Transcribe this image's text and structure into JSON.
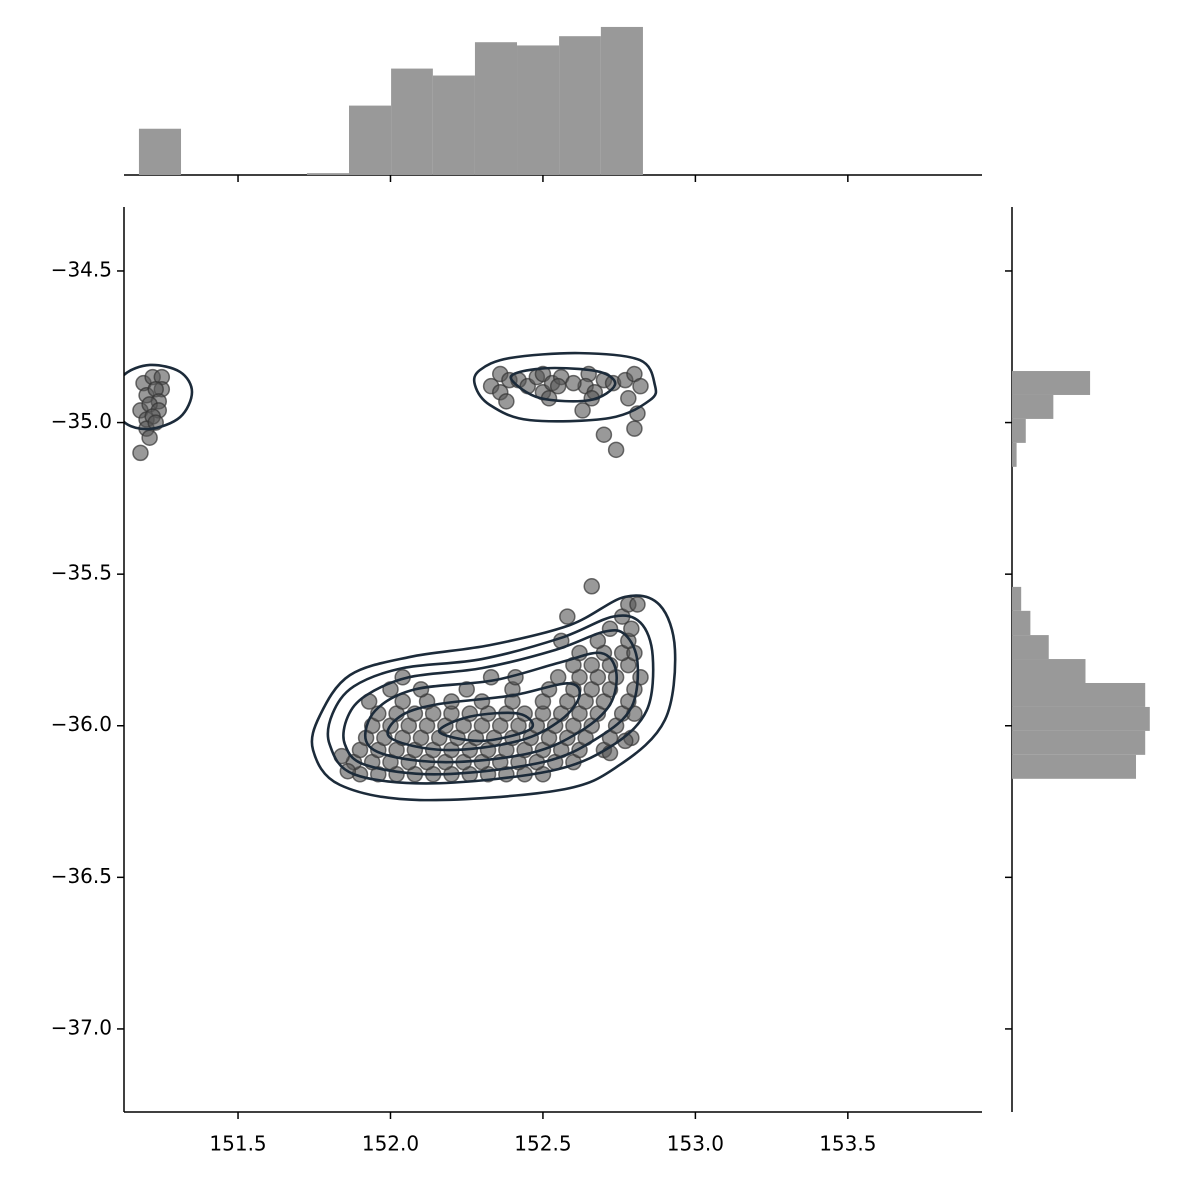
{
  "chart_data": {
    "type": "scatter",
    "xlim": [
      151.126,
      153.94
    ],
    "ylim": [
      -37.274,
      -34.289
    ],
    "xticks": [
      {
        "value": 151.5,
        "label": "151.5"
      },
      {
        "value": 152,
        "label": "152.0"
      },
      {
        "value": 152.5,
        "label": "152.5"
      },
      {
        "value": 153,
        "label": "153.0"
      },
      {
        "value": 153.5,
        "label": "153.5"
      }
    ],
    "yticks": [
      {
        "value": -34.5,
        "label": "−34.5"
      },
      {
        "value": -35,
        "label": "−35.0"
      },
      {
        "value": -35.5,
        "label": "−35.5"
      },
      {
        "value": -36,
        "label": "−36.0"
      },
      {
        "value": -36.5,
        "label": "−36.5"
      },
      {
        "value": -37,
        "label": "−37.0"
      }
    ],
    "point_color": "#555555",
    "contour_color": "#1c2b3a",
    "hist_color": "#999999",
    "points": [
      [
        151.19,
        -34.87
      ],
      [
        151.22,
        -34.85
      ],
      [
        151.25,
        -34.85
      ],
      [
        151.25,
        -34.89
      ],
      [
        151.2,
        -34.91
      ],
      [
        151.23,
        -34.89
      ],
      [
        151.24,
        -34.93
      ],
      [
        151.18,
        -34.96
      ],
      [
        151.21,
        -34.94
      ],
      [
        151.24,
        -34.96
      ],
      [
        151.2,
        -34.99
      ],
      [
        151.22,
        -34.98
      ],
      [
        151.2,
        -35.02
      ],
      [
        151.21,
        -35.05
      ],
      [
        151.18,
        -35.1
      ],
      [
        151.23,
        -35.0
      ],
      [
        152.33,
        -34.88
      ],
      [
        152.36,
        -34.84
      ],
      [
        152.36,
        -34.9
      ],
      [
        152.39,
        -34.86
      ],
      [
        152.38,
        -34.93
      ],
      [
        152.42,
        -34.86
      ],
      [
        152.45,
        -34.88
      ],
      [
        152.48,
        -34.85
      ],
      [
        152.5,
        -34.84
      ],
      [
        152.5,
        -34.9
      ],
      [
        152.52,
        -34.92
      ],
      [
        152.53,
        -34.87
      ],
      [
        152.56,
        -34.85
      ],
      [
        152.55,
        -34.88
      ],
      [
        152.65,
        -34.84
      ],
      [
        152.64,
        -34.88
      ],
      [
        152.67,
        -34.9
      ],
      [
        152.7,
        -34.86
      ],
      [
        152.73,
        -34.87
      ],
      [
        152.77,
        -34.86
      ],
      [
        152.8,
        -34.84
      ],
      [
        152.82,
        -34.88
      ],
      [
        152.78,
        -34.92
      ],
      [
        152.81,
        -34.97
      ],
      [
        152.8,
        -35.02
      ],
      [
        152.7,
        -35.04
      ],
      [
        152.74,
        -35.09
      ],
      [
        152.63,
        -34.96
      ],
      [
        152.66,
        -34.92
      ],
      [
        152.6,
        -34.87
      ],
      [
        151.9,
        -36.16
      ],
      [
        151.96,
        -36.16
      ],
      [
        152.02,
        -36.16
      ],
      [
        152.08,
        -36.16
      ],
      [
        152.14,
        -36.16
      ],
      [
        152.2,
        -36.16
      ],
      [
        152.26,
        -36.16
      ],
      [
        152.32,
        -36.16
      ],
      [
        152.38,
        -36.16
      ],
      [
        152.44,
        -36.16
      ],
      [
        152.5,
        -36.16
      ],
      [
        151.88,
        -36.12
      ],
      [
        151.94,
        -36.12
      ],
      [
        152.0,
        -36.12
      ],
      [
        152.06,
        -36.12
      ],
      [
        152.12,
        -36.12
      ],
      [
        152.18,
        -36.12
      ],
      [
        152.24,
        -36.12
      ],
      [
        152.3,
        -36.12
      ],
      [
        152.36,
        -36.12
      ],
      [
        152.42,
        -36.12
      ],
      [
        152.48,
        -36.12
      ],
      [
        152.54,
        -36.12
      ],
      [
        152.6,
        -36.12
      ],
      [
        151.9,
        -36.08
      ],
      [
        151.96,
        -36.08
      ],
      [
        152.02,
        -36.08
      ],
      [
        152.08,
        -36.08
      ],
      [
        152.14,
        -36.08
      ],
      [
        152.2,
        -36.08
      ],
      [
        152.26,
        -36.08
      ],
      [
        152.32,
        -36.08
      ],
      [
        152.38,
        -36.08
      ],
      [
        152.44,
        -36.08
      ],
      [
        152.5,
        -36.08
      ],
      [
        152.56,
        -36.08
      ],
      [
        152.62,
        -36.08
      ],
      [
        152.7,
        -36.08
      ],
      [
        151.92,
        -36.04
      ],
      [
        151.98,
        -36.04
      ],
      [
        152.04,
        -36.04
      ],
      [
        152.1,
        -36.04
      ],
      [
        152.16,
        -36.04
      ],
      [
        152.22,
        -36.04
      ],
      [
        152.28,
        -36.04
      ],
      [
        152.34,
        -36.04
      ],
      [
        152.4,
        -36.04
      ],
      [
        152.46,
        -36.04
      ],
      [
        152.52,
        -36.04
      ],
      [
        152.58,
        -36.04
      ],
      [
        152.64,
        -36.04
      ],
      [
        152.72,
        -36.04
      ],
      [
        152.79,
        -36.04
      ],
      [
        151.94,
        -36.0
      ],
      [
        152.0,
        -36.0
      ],
      [
        152.06,
        -36.0
      ],
      [
        152.12,
        -36.0
      ],
      [
        152.18,
        -36.0
      ],
      [
        152.24,
        -36.0
      ],
      [
        152.3,
        -36.0
      ],
      [
        152.36,
        -36.0
      ],
      [
        152.42,
        -36.0
      ],
      [
        152.48,
        -36.0
      ],
      [
        152.54,
        -36.0
      ],
      [
        152.6,
        -36.0
      ],
      [
        152.66,
        -36.0
      ],
      [
        152.74,
        -36.0
      ],
      [
        151.96,
        -35.96
      ],
      [
        152.02,
        -35.96
      ],
      [
        152.08,
        -35.96
      ],
      [
        152.14,
        -35.96
      ],
      [
        152.2,
        -35.96
      ],
      [
        152.26,
        -35.96
      ],
      [
        152.32,
        -35.96
      ],
      [
        152.38,
        -35.96
      ],
      [
        152.44,
        -35.96
      ],
      [
        152.5,
        -35.96
      ],
      [
        152.56,
        -35.96
      ],
      [
        152.62,
        -35.96
      ],
      [
        152.68,
        -35.96
      ],
      [
        152.76,
        -35.96
      ],
      [
        152.8,
        -35.96
      ],
      [
        151.93,
        -35.92
      ],
      [
        152.04,
        -35.92
      ],
      [
        152.12,
        -35.92
      ],
      [
        152.2,
        -35.92
      ],
      [
        152.3,
        -35.92
      ],
      [
        152.4,
        -35.92
      ],
      [
        152.5,
        -35.92
      ],
      [
        152.58,
        -35.92
      ],
      [
        152.64,
        -35.92
      ],
      [
        152.7,
        -35.92
      ],
      [
        152.78,
        -35.92
      ],
      [
        152.0,
        -35.88
      ],
      [
        152.1,
        -35.88
      ],
      [
        152.25,
        -35.88
      ],
      [
        152.4,
        -35.88
      ],
      [
        152.52,
        -35.88
      ],
      [
        152.6,
        -35.88
      ],
      [
        152.66,
        -35.88
      ],
      [
        152.72,
        -35.88
      ],
      [
        152.8,
        -35.88
      ],
      [
        152.04,
        -35.84
      ],
      [
        152.33,
        -35.84
      ],
      [
        152.41,
        -35.84
      ],
      [
        152.55,
        -35.84
      ],
      [
        152.62,
        -35.84
      ],
      [
        152.68,
        -35.84
      ],
      [
        152.74,
        -35.84
      ],
      [
        152.82,
        -35.84
      ],
      [
        152.6,
        -35.8
      ],
      [
        152.66,
        -35.8
      ],
      [
        152.72,
        -35.8
      ],
      [
        152.78,
        -35.8
      ],
      [
        152.62,
        -35.76
      ],
      [
        152.7,
        -35.76
      ],
      [
        152.76,
        -35.76
      ],
      [
        152.8,
        -35.76
      ],
      [
        152.56,
        -35.72
      ],
      [
        152.68,
        -35.72
      ],
      [
        152.78,
        -35.72
      ],
      [
        152.72,
        -35.68
      ],
      [
        152.79,
        -35.68
      ],
      [
        152.58,
        -35.64
      ],
      [
        152.76,
        -35.64
      ],
      [
        152.78,
        -35.6
      ],
      [
        152.81,
        -35.6
      ],
      [
        152.66,
        -35.54
      ],
      [
        152.77,
        -36.05
      ],
      [
        152.72,
        -36.09
      ],
      [
        151.84,
        -36.1
      ],
      [
        151.86,
        -36.15
      ]
    ],
    "contours": [
      [
        [
          151.746,
          -36.08
        ],
        [
          151.834,
          -36.195
        ],
        [
          152.096,
          -36.245
        ],
        [
          152.556,
          -36.212
        ],
        [
          152.752,
          -36.129
        ],
        [
          152.9,
          -35.981
        ],
        [
          152.933,
          -35.75
        ],
        [
          152.883,
          -35.602
        ],
        [
          152.769,
          -35.575
        ],
        [
          152.588,
          -35.668
        ],
        [
          152.326,
          -35.734
        ],
        [
          152.064,
          -35.773
        ],
        [
          151.867,
          -35.833
        ],
        [
          151.769,
          -35.965
        ]
      ],
      [
        [
          151.8,
          -36.06
        ],
        [
          151.88,
          -36.16
        ],
        [
          152.14,
          -36.19
        ],
        [
          152.52,
          -36.15
        ],
        [
          152.72,
          -36.07
        ],
        [
          152.84,
          -35.95
        ],
        [
          152.86,
          -35.77
        ],
        [
          152.82,
          -35.66
        ],
        [
          152.73,
          -35.64
        ],
        [
          152.56,
          -35.71
        ],
        [
          152.3,
          -35.78
        ],
        [
          152.04,
          -35.81
        ],
        [
          151.88,
          -35.87
        ],
        [
          151.81,
          -35.96
        ]
      ],
      [
        [
          151.85,
          -36.06
        ],
        [
          151.92,
          -36.13
        ],
        [
          152.16,
          -36.16
        ],
        [
          152.5,
          -36.12
        ],
        [
          152.68,
          -36.04
        ],
        [
          152.79,
          -35.94
        ],
        [
          152.81,
          -35.79
        ],
        [
          152.77,
          -35.7
        ],
        [
          152.7,
          -35.69
        ],
        [
          152.54,
          -35.75
        ],
        [
          152.3,
          -35.81
        ],
        [
          152.06,
          -35.84
        ],
        [
          151.92,
          -35.9
        ],
        [
          151.86,
          -35.97
        ]
      ],
      [
        [
          151.92,
          -36.05
        ],
        [
          152.0,
          -36.1
        ],
        [
          152.2,
          -36.12
        ],
        [
          152.46,
          -36.09
        ],
        [
          152.62,
          -36.02
        ],
        [
          152.72,
          -35.93
        ],
        [
          152.74,
          -35.82
        ],
        [
          152.69,
          -35.76
        ],
        [
          152.56,
          -35.79
        ],
        [
          152.34,
          -35.85
        ],
        [
          152.08,
          -35.88
        ],
        [
          151.95,
          -35.95
        ]
      ],
      [
        [
          152.0,
          -36.04
        ],
        [
          152.18,
          -36.08
        ],
        [
          152.42,
          -36.05
        ],
        [
          152.56,
          -35.98
        ],
        [
          152.62,
          -35.9
        ],
        [
          152.58,
          -35.86
        ],
        [
          152.4,
          -35.9
        ],
        [
          152.15,
          -35.93
        ],
        [
          152.03,
          -35.97
        ]
      ],
      [
        [
          152.16,
          -36.02
        ],
        [
          152.3,
          -36.05
        ],
        [
          152.46,
          -36.01
        ],
        [
          152.42,
          -35.96
        ],
        [
          152.26,
          -35.97
        ]
      ],
      [
        [
          152.277,
          -34.876
        ],
        [
          152.326,
          -34.942
        ],
        [
          152.457,
          -34.992
        ],
        [
          152.719,
          -34.985
        ],
        [
          152.851,
          -34.926
        ],
        [
          152.867,
          -34.876
        ],
        [
          152.818,
          -34.794
        ],
        [
          152.621,
          -34.771
        ],
        [
          152.392,
          -34.787
        ],
        [
          152.293,
          -34.827
        ]
      ],
      [
        [
          152.398,
          -34.86
        ],
        [
          152.49,
          -34.919
        ],
        [
          152.654,
          -34.926
        ],
        [
          152.736,
          -34.876
        ],
        [
          152.687,
          -34.833
        ],
        [
          152.539,
          -34.82
        ],
        [
          152.425,
          -34.833
        ]
      ],
      [
        [
          151.126,
          -34.843
        ],
        [
          151.211,
          -34.81
        ],
        [
          151.31,
          -34.833
        ],
        [
          151.349,
          -34.899
        ],
        [
          151.31,
          -34.982
        ],
        [
          151.211,
          -35.021
        ],
        [
          151.126,
          -34.998
        ],
        [
          151.097,
          -34.916
        ]
      ]
    ],
    "x_hist": {
      "bins": [
        151.175,
        151.313,
        151.451,
        151.588,
        151.726,
        151.864,
        152.002,
        152.139,
        152.277,
        152.415,
        152.553,
        152.69,
        152.828
      ],
      "counts": [
        10,
        0,
        0,
        0,
        0.4,
        15,
        23,
        21.5,
        28.7,
        28,
        30,
        32
      ],
      "lim": [
        0,
        33.5
      ]
    },
    "y_hist": {
      "bins": [
        -36.175,
        -36.096,
        -36.017,
        -35.938,
        -35.859,
        -35.78,
        -35.701,
        -35.621,
        -35.542,
        -35.463,
        -35.384,
        -35.305,
        -35.226,
        -35.146,
        -35.067,
        -34.988,
        -34.909,
        -34.83
      ],
      "counts": [
        27,
        29,
        30,
        29,
        16,
        8,
        4,
        2,
        0,
        0,
        0,
        0,
        0,
        1,
        3,
        9,
        17
      ],
      "lim": [
        0,
        34.4
      ]
    }
  }
}
